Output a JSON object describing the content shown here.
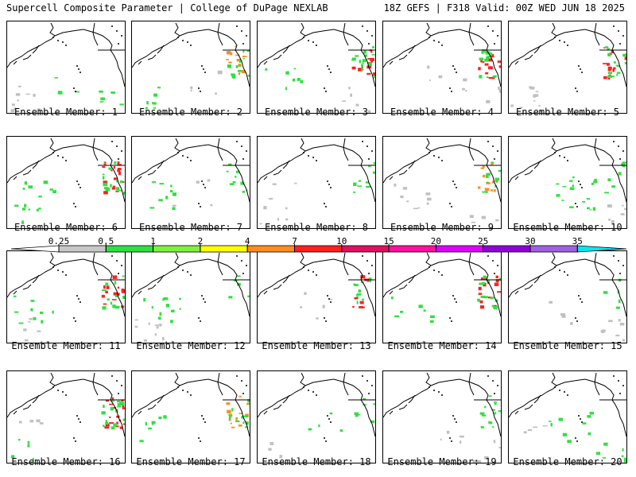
{
  "header": {
    "title": "Supercell Composite Parameter | College of DuPage NEXLAB",
    "run": "18Z GEFS | F318 Valid: 00Z WED JUN 18 2025"
  },
  "member_label_prefix": "Ensemble Member: ",
  "members": [
    {
      "id": "1",
      "blobs": [
        [
          "se",
          "green",
          0.3
        ],
        [
          "sw",
          "gray",
          0.5
        ],
        [
          "cn",
          "green",
          0.1
        ]
      ]
    },
    {
      "id": "2",
      "blobs": [
        [
          "ne",
          "orange",
          0.6
        ],
        [
          "ne",
          "green",
          0.7
        ],
        [
          "sw",
          "green",
          0.4
        ],
        [
          "cn",
          "gray",
          0.2
        ]
      ]
    },
    {
      "id": "3",
      "blobs": [
        [
          "ne",
          "red",
          0.7
        ],
        [
          "ne",
          "green",
          0.8
        ],
        [
          "cw",
          "green",
          0.4
        ],
        [
          "se",
          "gray",
          0.3
        ]
      ]
    },
    {
      "id": "4",
      "blobs": [
        [
          "ne",
          "red",
          0.8
        ],
        [
          "ne",
          "green",
          0.8
        ],
        [
          "cn",
          "gray",
          0.3
        ],
        [
          "se",
          "gray",
          0.2
        ]
      ]
    },
    {
      "id": "5",
      "blobs": [
        [
          "ne",
          "red",
          0.8
        ],
        [
          "ne",
          "green",
          0.7
        ],
        [
          "sw",
          "gray",
          0.6
        ]
      ]
    },
    {
      "id": "6",
      "blobs": [
        [
          "ne",
          "red",
          0.9
        ],
        [
          "ne",
          "green",
          0.8
        ],
        [
          "cw",
          "green",
          0.5
        ],
        [
          "sw",
          "green",
          0.3
        ]
      ]
    },
    {
      "id": "7",
      "blobs": [
        [
          "ne",
          "green",
          0.5
        ],
        [
          "cw",
          "green",
          0.5
        ],
        [
          "cn",
          "gray",
          0.2
        ]
      ]
    },
    {
      "id": "8",
      "blobs": [
        [
          "ne",
          "green",
          0.5
        ],
        [
          "sw",
          "gray",
          0.3
        ],
        [
          "cw",
          "gray",
          0.2
        ]
      ]
    },
    {
      "id": "9",
      "blobs": [
        [
          "ne",
          "orange",
          0.6
        ],
        [
          "ne",
          "green",
          0.6
        ],
        [
          "cw",
          "gray",
          0.5
        ],
        [
          "se",
          "gray",
          0.2
        ]
      ]
    },
    {
      "id": "10",
      "blobs": [
        [
          "cn",
          "green",
          0.9
        ],
        [
          "ne",
          "green",
          0.4
        ],
        [
          "se",
          "gray",
          0.4
        ]
      ]
    },
    {
      "id": "11",
      "blobs": [
        [
          "ne",
          "red",
          0.8
        ],
        [
          "ne",
          "green",
          0.6
        ],
        [
          "cw",
          "green",
          0.5
        ],
        [
          "sw",
          "gray",
          0.3
        ]
      ]
    },
    {
      "id": "12",
      "blobs": [
        [
          "cw",
          "green",
          0.6
        ],
        [
          "sw",
          "gray",
          0.5
        ],
        [
          "ne",
          "green",
          0.3
        ]
      ]
    },
    {
      "id": "13",
      "blobs": [
        [
          "ne",
          "green",
          0.6
        ],
        [
          "ne",
          "red",
          0.4
        ],
        [
          "cn",
          "gray",
          0.3
        ]
      ]
    },
    {
      "id": "14",
      "blobs": [
        [
          "ne",
          "red",
          0.8
        ],
        [
          "ne",
          "green",
          0.7
        ],
        [
          "cw",
          "green",
          0.4
        ]
      ]
    },
    {
      "id": "15",
      "blobs": [
        [
          "se",
          "gray",
          0.5
        ],
        [
          "ne",
          "green",
          0.3
        ],
        [
          "cn",
          "gray",
          0.2
        ]
      ]
    },
    {
      "id": "16",
      "blobs": [
        [
          "ne",
          "red",
          1.0
        ],
        [
          "ne",
          "green",
          0.9
        ],
        [
          "sw",
          "green",
          0.3
        ],
        [
          "cw",
          "gray",
          0.2
        ]
      ]
    },
    {
      "id": "17",
      "blobs": [
        [
          "ne",
          "orange",
          0.7
        ],
        [
          "ne",
          "green",
          0.6
        ],
        [
          "cw",
          "green",
          0.4
        ]
      ]
    },
    {
      "id": "18",
      "blobs": [
        [
          "ne",
          "green",
          0.4
        ],
        [
          "cn",
          "green",
          0.2
        ],
        [
          "sw",
          "gray",
          0.2
        ]
      ]
    },
    {
      "id": "19",
      "blobs": [
        [
          "ne",
          "green",
          0.7
        ],
        [
          "se",
          "gray",
          0.3
        ],
        [
          "cn",
          "gray",
          0.2
        ]
      ]
    },
    {
      "id": "20",
      "blobs": [
        [
          "cn",
          "green",
          0.5
        ],
        [
          "se",
          "green",
          0.4
        ],
        [
          "cw",
          "gray",
          0.2
        ]
      ]
    }
  ],
  "scale": {
    "labels": [
      "0.25",
      "0.5",
      "1",
      "2",
      "4",
      "7",
      "10",
      "15",
      "20",
      "25",
      "30",
      "35"
    ],
    "colors": [
      "#c8c8c8",
      "#30e040",
      "#80f040",
      "#ffff00",
      "#ff8c20",
      "#ff2020",
      "#e01060",
      "#ff10a0",
      "#e000ff",
      "#9000d8",
      "#a060e0",
      "#00e8f0"
    ],
    "arrow_left_color": "#ffffff",
    "arrow_right_color": "#00e8f0"
  },
  "fill_colors": {
    "gray": "#c0c0c0",
    "green": "#30e040",
    "orange": "#ff8c20",
    "red": "#ff2020"
  }
}
